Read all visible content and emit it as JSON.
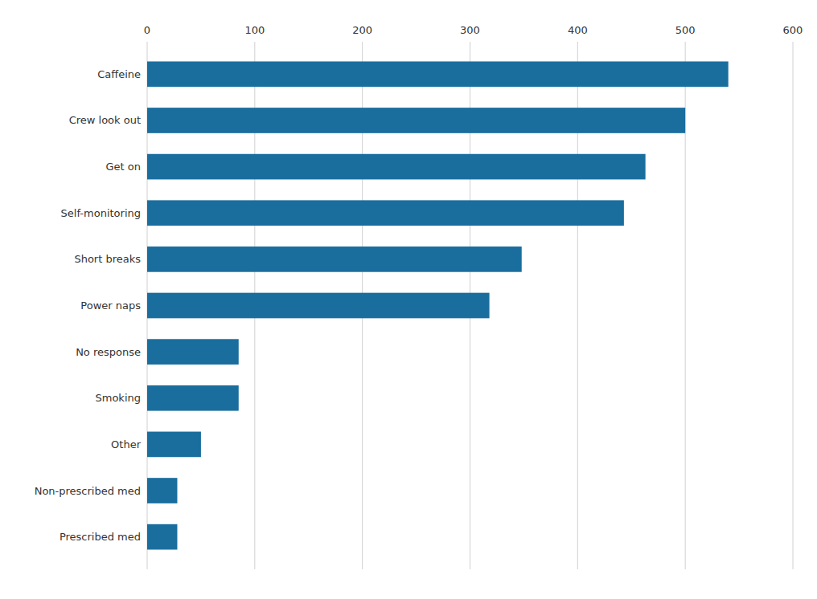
{
  "chart_data": {
    "type": "bar",
    "orientation": "horizontal",
    "categories": [
      "Prescribed med",
      "Non-prescribed med",
      "Other",
      "Smoking",
      "No response",
      "Power naps",
      "Short breaks",
      "Self-monitoring",
      "Get on",
      "Crew look out",
      "Caffeine"
    ],
    "values": [
      28,
      28,
      50,
      85,
      85,
      318,
      348,
      443,
      463,
      500,
      540
    ],
    "color": "#1a6e9e",
    "xlim": [
      0,
      600
    ],
    "xticks": [
      0,
      100,
      200,
      300,
      400,
      500,
      600
    ],
    "grid": true
  }
}
